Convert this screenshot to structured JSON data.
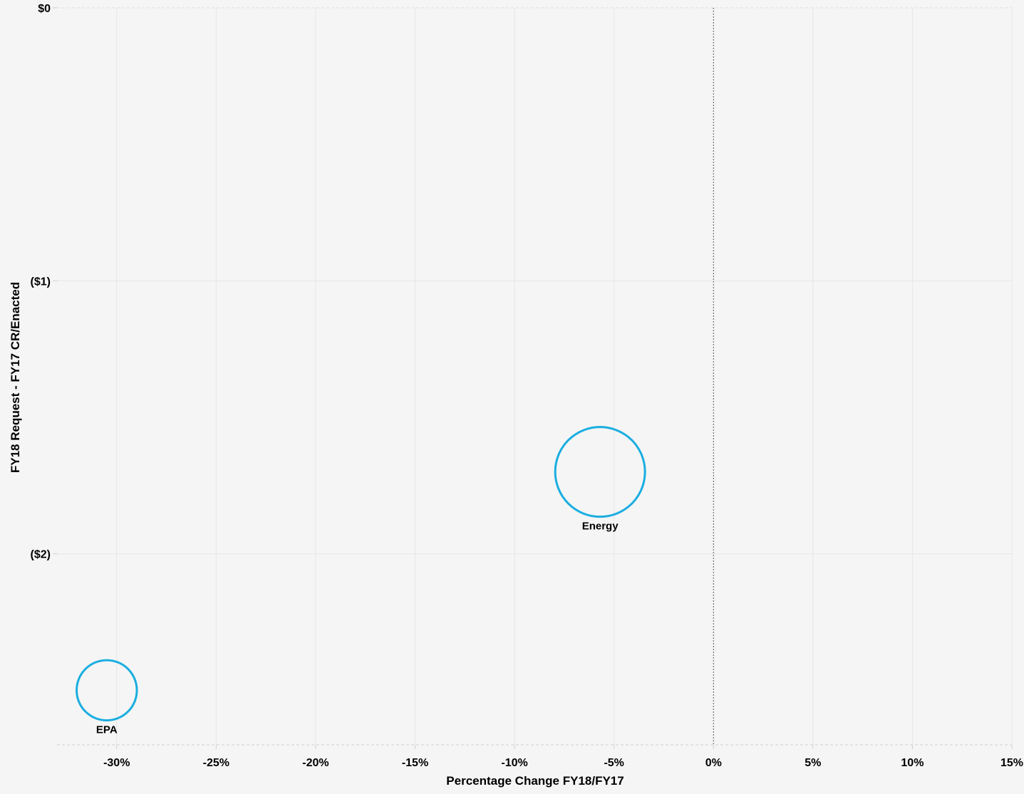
{
  "chart_data": {
    "type": "scatter",
    "xlabel": "Percentage Change FY18/FY17",
    "ylabel": "FY18 Request - FY17 CR/Enacted",
    "xlim": [
      -33,
      15
    ],
    "ylim": [
      -2.7,
      0
    ],
    "x_ticks": [
      -30,
      -25,
      -20,
      -15,
      -10,
      -5,
      0,
      5,
      10,
      15
    ],
    "x_tick_labels": [
      "-30%",
      "-25%",
      "-20%",
      "-15%",
      "-10%",
      "-5%",
      "0%",
      "5%",
      "10%",
      "15%"
    ],
    "y_ticks": [
      0,
      -1,
      -2
    ],
    "y_tick_labels": [
      "$0",
      "($1)",
      "($2)"
    ],
    "grid": true,
    "reference_line_x": 0,
    "points": [
      {
        "label": "Energy",
        "x": -5.7,
        "y": -1.7,
        "size": 1.0
      },
      {
        "label": "EPA",
        "x": -30.5,
        "y": -2.5,
        "size": 0.45
      }
    ],
    "colors": {
      "marker": "#1aaee0",
      "grid": "#e6e6e6",
      "axis": "#cfcfcf",
      "reference": "#555555",
      "background": "#f5f5f5"
    }
  }
}
